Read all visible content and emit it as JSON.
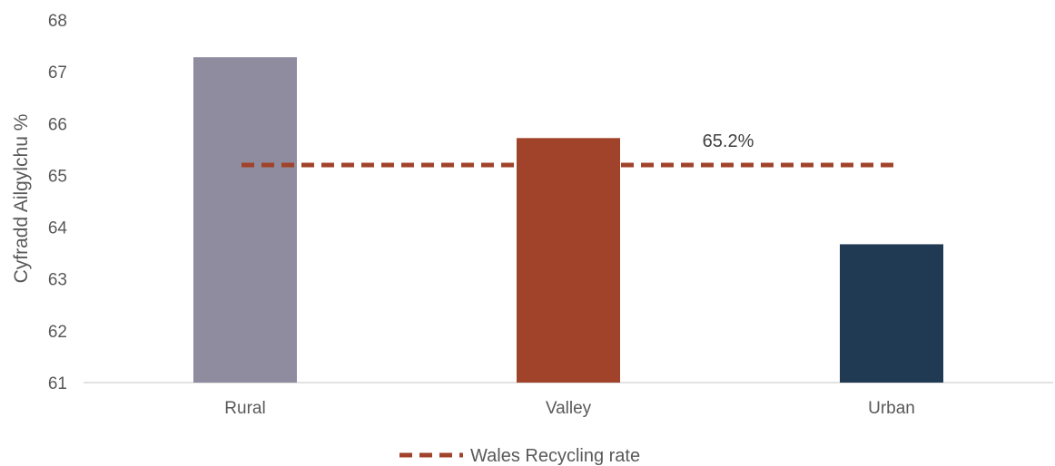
{
  "chart_data": {
    "type": "bar",
    "categories": [
      "Rural",
      "Valley",
      "Urban"
    ],
    "values": [
      67.28,
      65.72,
      63.67
    ],
    "bar_colors": [
      "#8f8ca0",
      "#a0432a",
      "#1f3a52"
    ],
    "ylabel": "Cyfradd Ailgylchu %",
    "ylim": [
      61,
      68
    ],
    "yticks": [
      61,
      62,
      63,
      64,
      65,
      66,
      67,
      68
    ],
    "gridlines": false,
    "reference_line": {
      "name": "Wales Recycling rate",
      "value": 65.2,
      "label": "65.2%",
      "color": "#a0432a",
      "style": "dashed"
    },
    "legend": {
      "position": "bottom",
      "entries": [
        "Wales Recycling rate"
      ]
    }
  }
}
